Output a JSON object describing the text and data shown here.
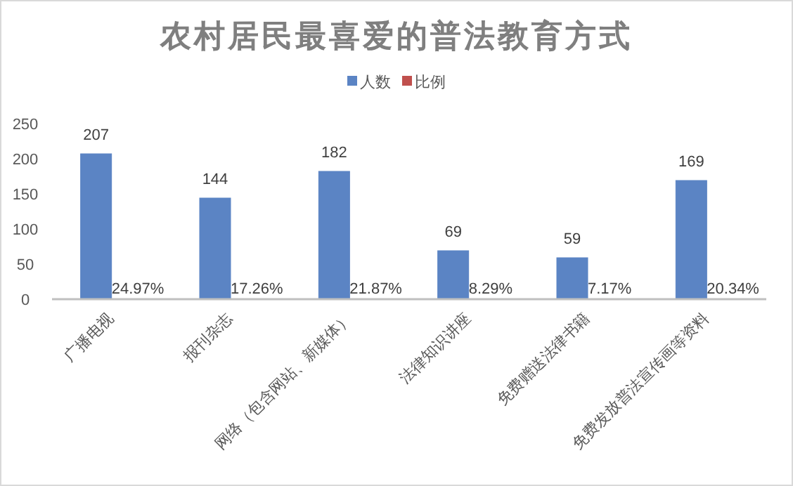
{
  "chart_data": {
    "type": "bar",
    "title": "农村居民最喜爱的普法教育方式",
    "categories": [
      "广播电视",
      "报刊杂志",
      "网络（包含网站、新媒体）",
      "法律知识讲座",
      "免费赠送法律书籍",
      "免费发放普法宣传画等资料"
    ],
    "series": [
      {
        "name": "人数",
        "color": "#5b84c4",
        "values": [
          207,
          144,
          182,
          69,
          59,
          169
        ],
        "value_labels": [
          "207",
          "144",
          "182",
          "69",
          "59",
          "169"
        ]
      },
      {
        "name": "比例",
        "color": "#c0504d",
        "values": [
          0.2497,
          0.1726,
          0.2187,
          0.0829,
          0.0717,
          0.2034
        ],
        "value_labels": [
          "24.97%",
          "17.26%",
          "21.87%",
          "8.29%",
          "7.17%",
          "20.34%"
        ]
      }
    ],
    "ylim": [
      0,
      250
    ],
    "yticks": [
      0,
      50,
      100,
      150,
      200,
      250
    ],
    "grid": false,
    "legend": "top"
  }
}
